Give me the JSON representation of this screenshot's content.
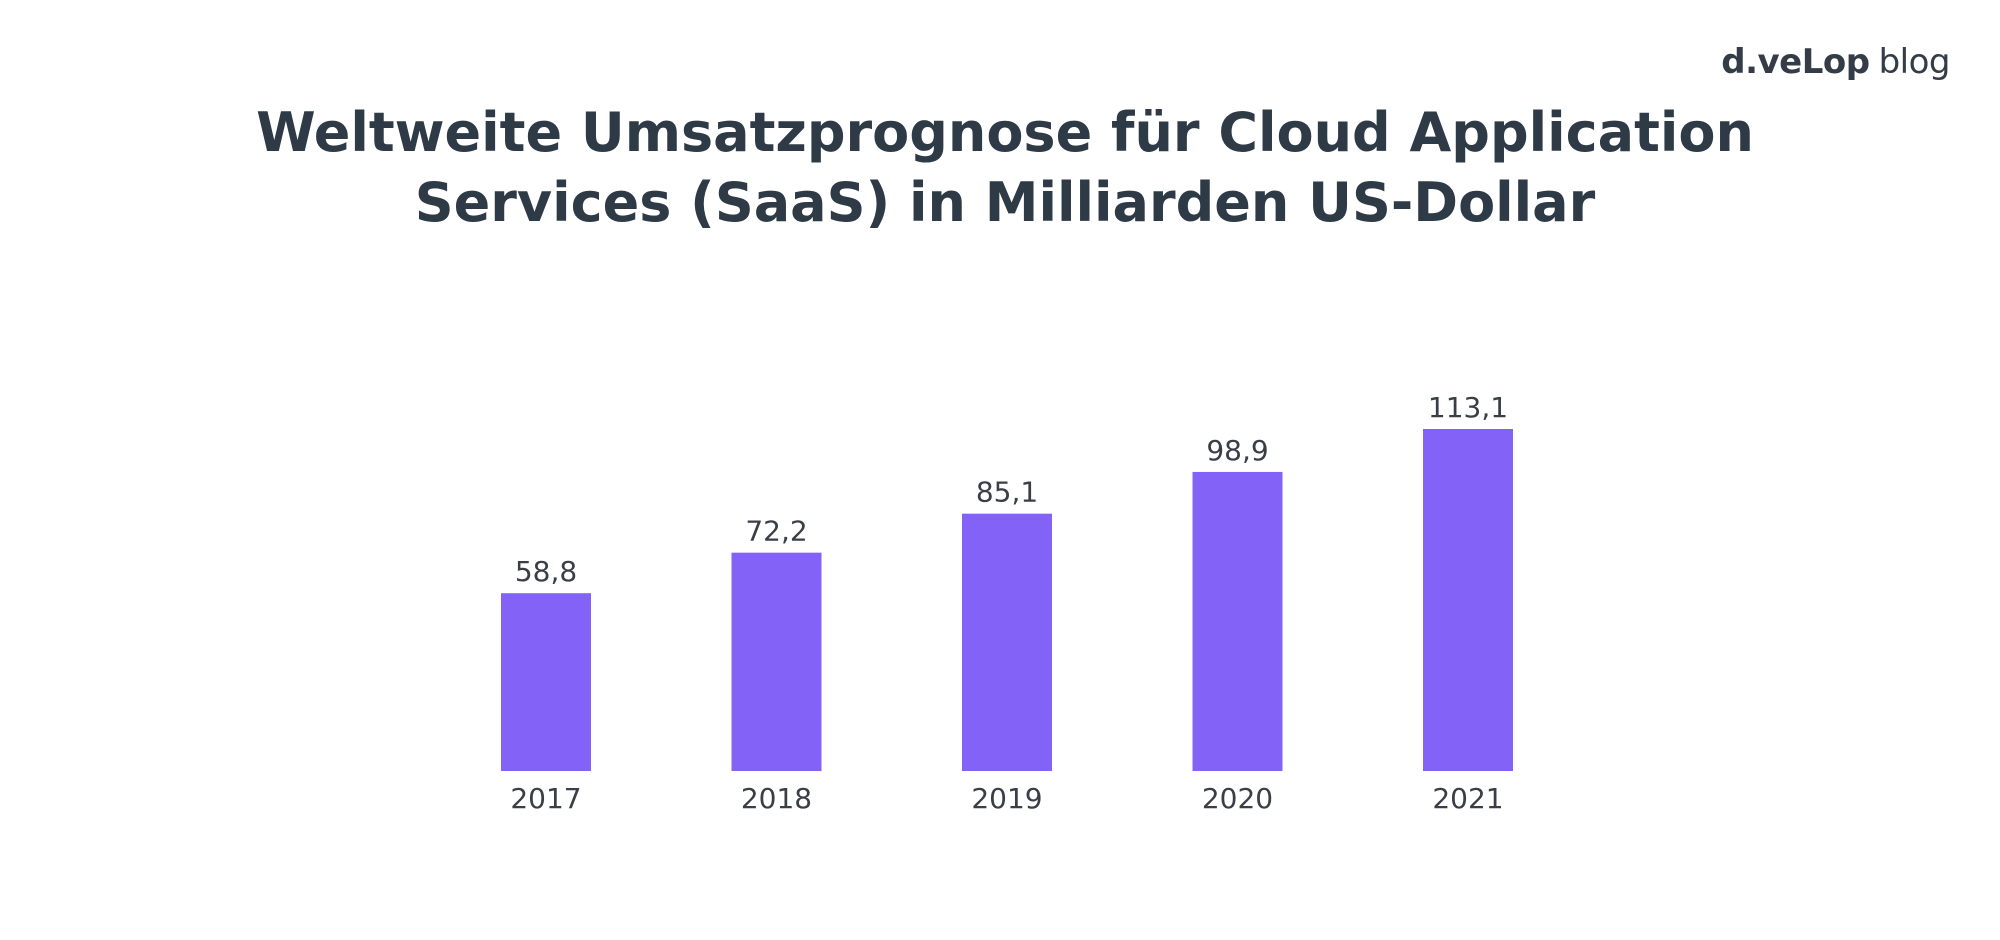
{
  "brand": {
    "company": "d.veLop",
    "suffix": "blog"
  },
  "colors": {
    "bar": "#8363f7",
    "text": "#2e3a46"
  },
  "chart_data": {
    "type": "bar",
    "title_lines": [
      "Weltweite Umsatzprognose für Cloud Application",
      "Services (SaaS) in Milliarden US-Dollar"
    ],
    "title": "Weltweite Umsatzprognose für Cloud Application Services (SaaS) in Milliarden US-Dollar",
    "categories": [
      "2017",
      "2018",
      "2019",
      "2020",
      "2021"
    ],
    "values": [
      58.8,
      72.2,
      85.1,
      98.9,
      113.1
    ],
    "value_labels": [
      "58,8",
      "72,2",
      "85,1",
      "98,9",
      "113,1"
    ],
    "xlabel": "",
    "ylabel": "",
    "ylim": [
      0,
      113.1
    ],
    "grid": false,
    "legend": "none"
  }
}
